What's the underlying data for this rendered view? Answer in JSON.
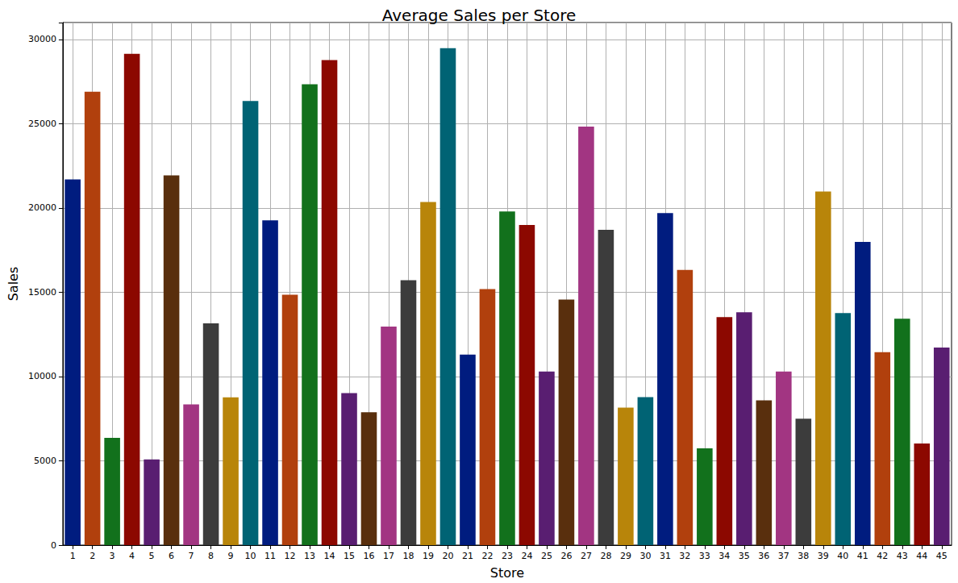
{
  "chart_data": {
    "type": "bar",
    "title": "Average Sales per Store",
    "x_label": "Store",
    "y_label": "Sales",
    "categories": [
      "1",
      "2",
      "3",
      "4",
      "5",
      "6",
      "7",
      "8",
      "9",
      "10",
      "11",
      "12",
      "13",
      "14",
      "15",
      "16",
      "17",
      "18",
      "19",
      "20",
      "21",
      "22",
      "23",
      "24",
      "25",
      "26",
      "27",
      "28",
      "29",
      "30",
      "31",
      "32",
      "33",
      "34",
      "35",
      "36",
      "37",
      "38",
      "39",
      "40",
      "41",
      "42",
      "43",
      "44",
      "45"
    ],
    "values": [
      21700,
      26900,
      6360,
      29150,
      5080,
      21930,
      8350,
      13150,
      8770,
      26350,
      19270,
      14860,
      27340,
      28770,
      9020,
      7880,
      12960,
      15710,
      20360,
      29480,
      11300,
      15190,
      19790,
      18990,
      10300,
      14570,
      24830,
      18700,
      8160,
      8780,
      19700,
      16330,
      5740,
      13530,
      13810,
      8590,
      10300,
      7500,
      20980,
      13770,
      17990,
      11440,
      13430,
      6030,
      11720
    ],
    "colors": [
      "#001c7f",
      "#b1400d",
      "#12711c",
      "#8c0800",
      "#591e71",
      "#592f0d",
      "#a23582",
      "#3c3c3c",
      "#b8850a",
      "#006374",
      "#001c7f",
      "#b1400d",
      "#12711c",
      "#8c0800",
      "#591e71",
      "#592f0d",
      "#a23582",
      "#3c3c3c",
      "#b8850a",
      "#006374",
      "#001c7f",
      "#b1400d",
      "#12711c",
      "#8c0800",
      "#591e71",
      "#592f0d",
      "#a23582",
      "#3c3c3c",
      "#b8850a",
      "#006374",
      "#001c7f",
      "#b1400d",
      "#12711c",
      "#8c0800",
      "#591e71",
      "#592f0d",
      "#a23582",
      "#3c3c3c",
      "#b8850a",
      "#006374",
      "#001c7f",
      "#b1400d",
      "#12711c",
      "#8c0800",
      "#591e71"
    ],
    "ylim": [
      0,
      31000
    ],
    "yticks": [
      0,
      5000,
      10000,
      15000,
      20000,
      25000,
      30000
    ],
    "grid": true
  }
}
